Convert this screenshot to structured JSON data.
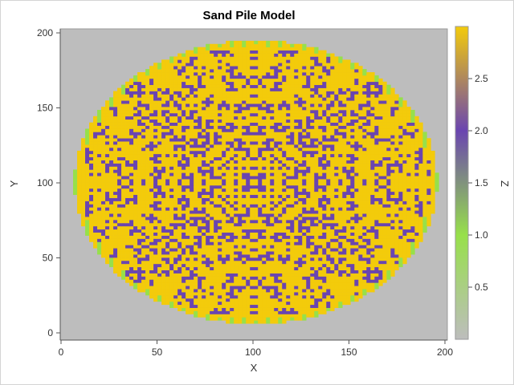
{
  "chart_data": {
    "type": "heatmap",
    "title": "Sand Pile Model",
    "xlabel": "X",
    "ylabel": "Y",
    "colorbar_label": "Z",
    "xlim": [
      0,
      201
    ],
    "ylim": [
      0,
      201
    ],
    "x_ticks": [
      "0",
      "50",
      "100",
      "150",
      "200"
    ],
    "y_ticks": [
      "0",
      "50",
      "100",
      "150",
      "200"
    ],
    "z_range": [
      0,
      3
    ],
    "colorbar_ticks": [
      "0.5",
      "1.0",
      "1.5",
      "2.0",
      "2.5"
    ],
    "colormap": [
      {
        "z": 0.0,
        "color": "#bdbdbd"
      },
      {
        "z": 1.0,
        "color": "#97e04a"
      },
      {
        "z": 2.0,
        "color": "#6a45b0"
      },
      {
        "z": 3.0,
        "color": "#f3cb0b"
      }
    ],
    "background_color": "#bdbdbd",
    "pattern": "fractal sandpile occupying an ellipse centered near (100, 100), x from about 7 to 196, y from about 6 to 195; values are integers 0 to 3, mostly 3 (yellow) and 2 (purple), with 1 (green) near the rim"
  }
}
